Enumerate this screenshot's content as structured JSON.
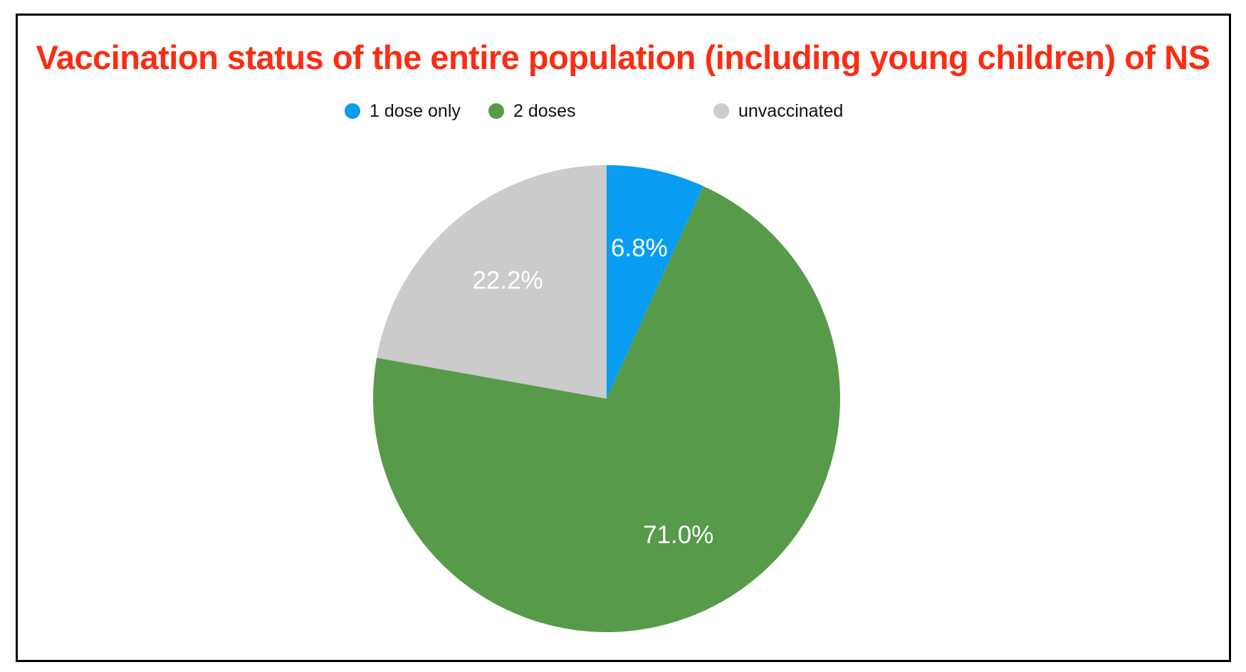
{
  "chart_data": {
    "type": "pie",
    "title": "Vaccination status of the entire population (including young children) of NS",
    "title_color": "#fa2d13",
    "categories": [
      "1 dose only",
      "2 doses",
      "unvaccinated"
    ],
    "values": [
      6.8,
      71.0,
      22.2
    ],
    "value_labels": [
      "6.8%",
      "71.0%",
      "22.2%"
    ],
    "colors": [
      "#089df2",
      "#579a4a",
      "#cbcbcb"
    ],
    "label_color": "#ffffff",
    "legend_position": "top",
    "start_angle_deg": 0,
    "direction": "clockwise",
    "legend_text_color": "#111111",
    "page_border_color": "#000000",
    "background_color": "#ffffff"
  }
}
